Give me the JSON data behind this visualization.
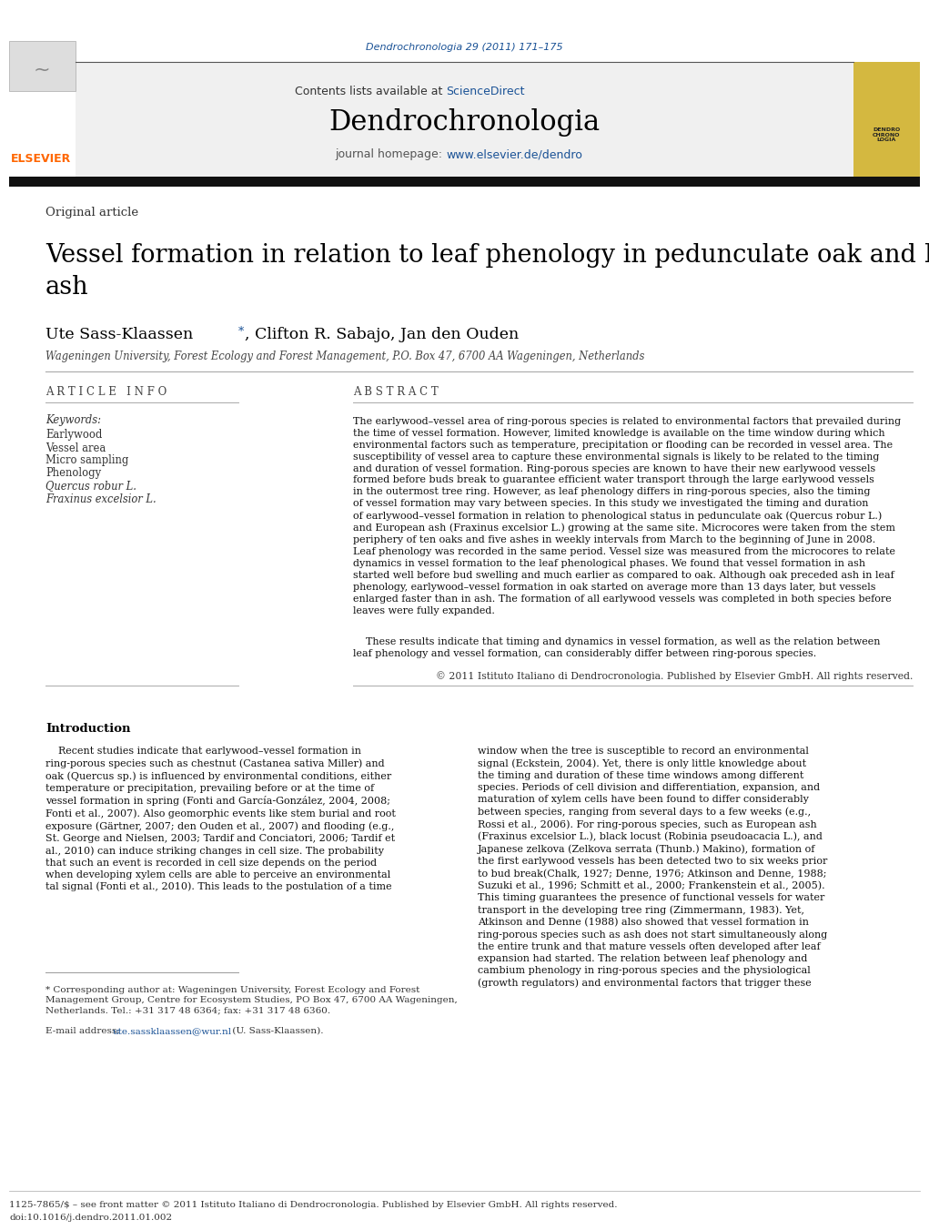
{
  "page_width": 10.21,
  "page_height": 13.51,
  "background_color": "#ffffff",
  "journal_ref": "Dendrochronologia 29 (2011) 171–175",
  "journal_ref_color": "#1a5296",
  "header_bg": "#f0f0f0",
  "journal_name": "Dendrochronologia",
  "contents_text": "Contents lists available at ",
  "sciencedirect_text": "ScienceDirect",
  "sciencedirect_color": "#1a5296",
  "journal_homepage_text": "journal homepage: ",
  "journal_url": "www.elsevier.de/dendro",
  "journal_url_color": "#1a5296",
  "elsevier_color": "#ff6600",
  "article_type": "Original article",
  "title": "Vessel formation in relation to leaf phenology in pedunculate oak and European\nash",
  "authors": "Ute Sass-Klaassen",
  "authors_star": "*",
  "authors_rest": ", Clifton R. Sabajo, Jan den Ouden",
  "affiliation": "Wageningen University, Forest Ecology and Forest Management, P.O. Box 47, 6700 AA Wageningen, Netherlands",
  "article_info_label": "A R T I C L E   I N F O",
  "abstract_label": "A B S T R A C T",
  "keywords_label": "Keywords:",
  "keywords": [
    "Earlywood",
    "Vessel area",
    "Micro sampling",
    "Phenology",
    "Quercus robur L.",
    "Fraxinus excelsior L."
  ],
  "keywords_italic": [
    false,
    false,
    false,
    false,
    true,
    true
  ],
  "abstract_copyright": "© 2011 Istituto Italiano di Dendrocronologia. Published by Elsevier GmbH. All rights reserved.",
  "intro_title": "Introduction",
  "footnote_email": "ute.sassklaassen@wur.nl",
  "footnote_email_color": "#1a5296",
  "bottom_ref1": "1125-7865/$ – see front matter © 2011 Istituto Italiano di Dendrocronologia. Published by Elsevier GmbH. All rights reserved.",
  "bottom_ref2": "doi:10.1016/j.dendro.2011.01.002"
}
